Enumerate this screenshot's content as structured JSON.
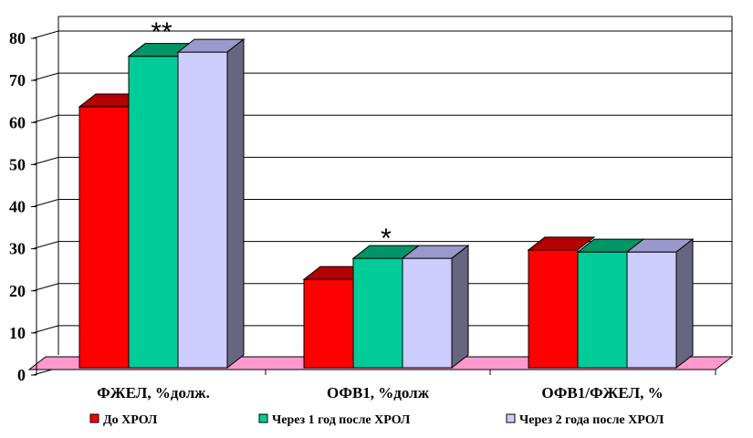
{
  "chart_data": {
    "type": "bar",
    "categories": [
      "ФЖЕЛ, %долж.",
      "ОФВ1, %долж",
      "ОФВ1/ФЖЕЛ, %"
    ],
    "series": [
      {
        "name": "До ХРОЛ",
        "values": [
          62,
          21,
          28
        ],
        "color": "#ff0000",
        "top_color": "#b40000"
      },
      {
        "name": "Через 1 год после ХРОЛ",
        "values": [
          74,
          26,
          27.5
        ],
        "color": "#00cc99",
        "top_color": "#009466"
      },
      {
        "name": "Через 2 года после ХРОЛ",
        "values": [
          75,
          26,
          27.5
        ],
        "color": "#ccccff",
        "top_color": "#9999cc"
      }
    ],
    "ylim": [
      0,
      80
    ],
    "yticks": [
      0,
      10,
      20,
      30,
      40,
      50,
      60,
      70,
      80
    ],
    "annotations": [
      {
        "category": 0,
        "text": "**"
      },
      {
        "category": 1,
        "text": "*"
      }
    ],
    "grid": true,
    "legend_position": "bottom",
    "floor_color": "#ff99cc",
    "side_color": "#666680"
  }
}
